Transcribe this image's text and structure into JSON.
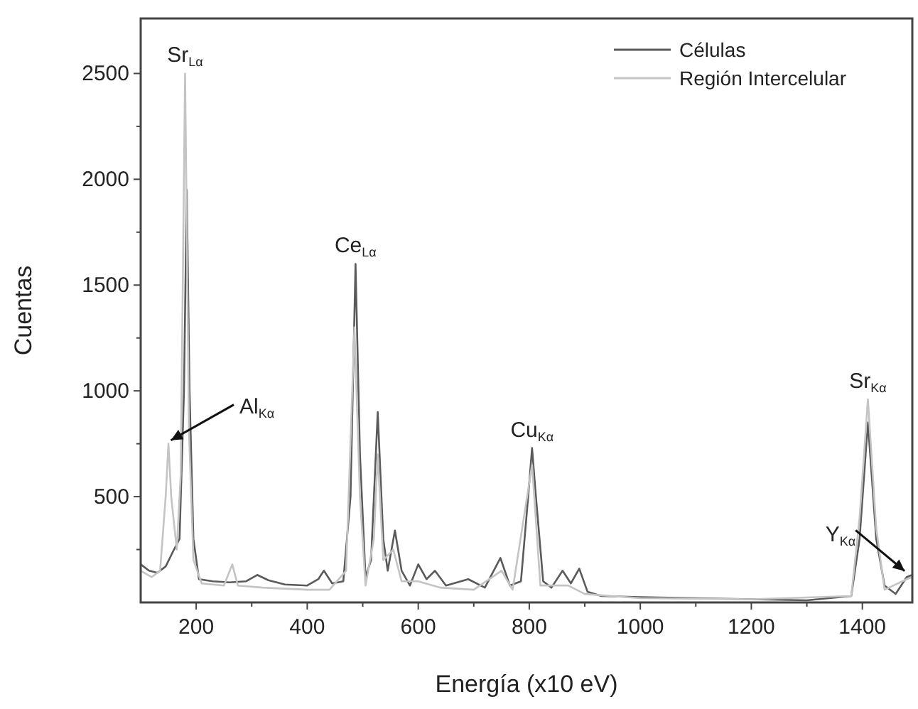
{
  "chart_data": {
    "type": "line",
    "xlabel": "Energía (x10 eV)",
    "ylabel": "Cuentas",
    "legend": "top right",
    "xlim": [
      100,
      1490
    ],
    "ylim": [
      0,
      2760
    ],
    "xticks": [
      200,
      {
        "value": 300,
        "label": null
      },
      400,
      {
        "value": 500,
        "label": null
      },
      600,
      {
        "value": 700,
        "label": null
      },
      800,
      {
        "value": 900,
        "label": null
      },
      1000,
      {
        "value": 1100,
        "label": null
      },
      1200,
      {
        "value": 1300,
        "label": null
      },
      1400
    ],
    "yticks": [
      {
        "value": 250,
        "label": null
      },
      500,
      {
        "value": 750,
        "label": null
      },
      1000,
      {
        "value": 1250,
        "label": null
      },
      1500,
      {
        "value": 1750,
        "label": null
      },
      2000,
      {
        "value": 2250,
        "label": null
      },
      2500
    ],
    "series": [
      {
        "name": "Células",
        "color": "#5a5a5a",
        "x": [
          100,
          115,
          130,
          145,
          160,
          170,
          178,
          183,
          188,
          195,
          205,
          230,
          260,
          290,
          310,
          330,
          360,
          400,
          420,
          430,
          445,
          465,
          478,
          487,
          495,
          505,
          515,
          527,
          537,
          545,
          558,
          570,
          585,
          600,
          615,
          630,
          650,
          690,
          720,
          748,
          765,
          785,
          798,
          805,
          812,
          825,
          840,
          860,
          875,
          890,
          905,
          930,
          1000,
          1100,
          1200,
          1300,
          1380,
          1395,
          1410,
          1425,
          1440,
          1460,
          1480,
          1490
        ],
        "values": [
          180,
          150,
          140,
          170,
          250,
          300,
          1000,
          1950,
          1000,
          300,
          110,
          100,
          95,
          100,
          130,
          105,
          85,
          80,
          110,
          150,
          90,
          100,
          500,
          1600,
          700,
          120,
          200,
          900,
          300,
          150,
          340,
          150,
          80,
          180,
          110,
          150,
          80,
          110,
          70,
          210,
          80,
          100,
          500,
          730,
          500,
          100,
          70,
          150,
          90,
          160,
          50,
          30,
          25,
          20,
          15,
          10,
          30,
          300,
          850,
          300,
          80,
          40,
          120,
          130
        ]
      },
      {
        "name": "Región Intercelular",
        "color": "#c4c4c4",
        "x": [
          100,
          120,
          135,
          145,
          150,
          155,
          165,
          172,
          180,
          187,
          195,
          210,
          250,
          265,
          275,
          320,
          400,
          440,
          470,
          485,
          495,
          505,
          520,
          527,
          537,
          555,
          570,
          600,
          640,
          700,
          750,
          770,
          805,
          820,
          870,
          900,
          1000,
          1200,
          1380,
          1395,
          1410,
          1425,
          1440,
          1480,
          1490
        ],
        "values": [
          150,
          120,
          150,
          500,
          750,
          500,
          250,
          600,
          2500,
          800,
          200,
          90,
          80,
          180,
          80,
          70,
          60,
          60,
          150,
          1300,
          500,
          80,
          300,
          700,
          200,
          250,
          100,
          100,
          70,
          60,
          150,
          60,
          650,
          80,
          80,
          40,
          20,
          15,
          30,
          400,
          960,
          350,
          60,
          110,
          120
        ]
      }
    ],
    "annotations": [
      {
        "text": "Sr$_{Lα}$",
        "x": 180,
        "y": 2500
      },
      {
        "text": "Ce$_{Lα}$",
        "x": 487,
        "y": 1600
      },
      {
        "text": "Cu$_{Kα}$",
        "x": 805,
        "y": 730
      },
      {
        "text": "Sr$_{Kα}$",
        "x": 1410,
        "y": 960
      },
      {
        "text": "Al$_{Kα}$",
        "x": 150,
        "y": 760
      },
      {
        "text": "Y$_{Kα}$",
        "x": 1480,
        "y": 140
      }
    ]
  }
}
